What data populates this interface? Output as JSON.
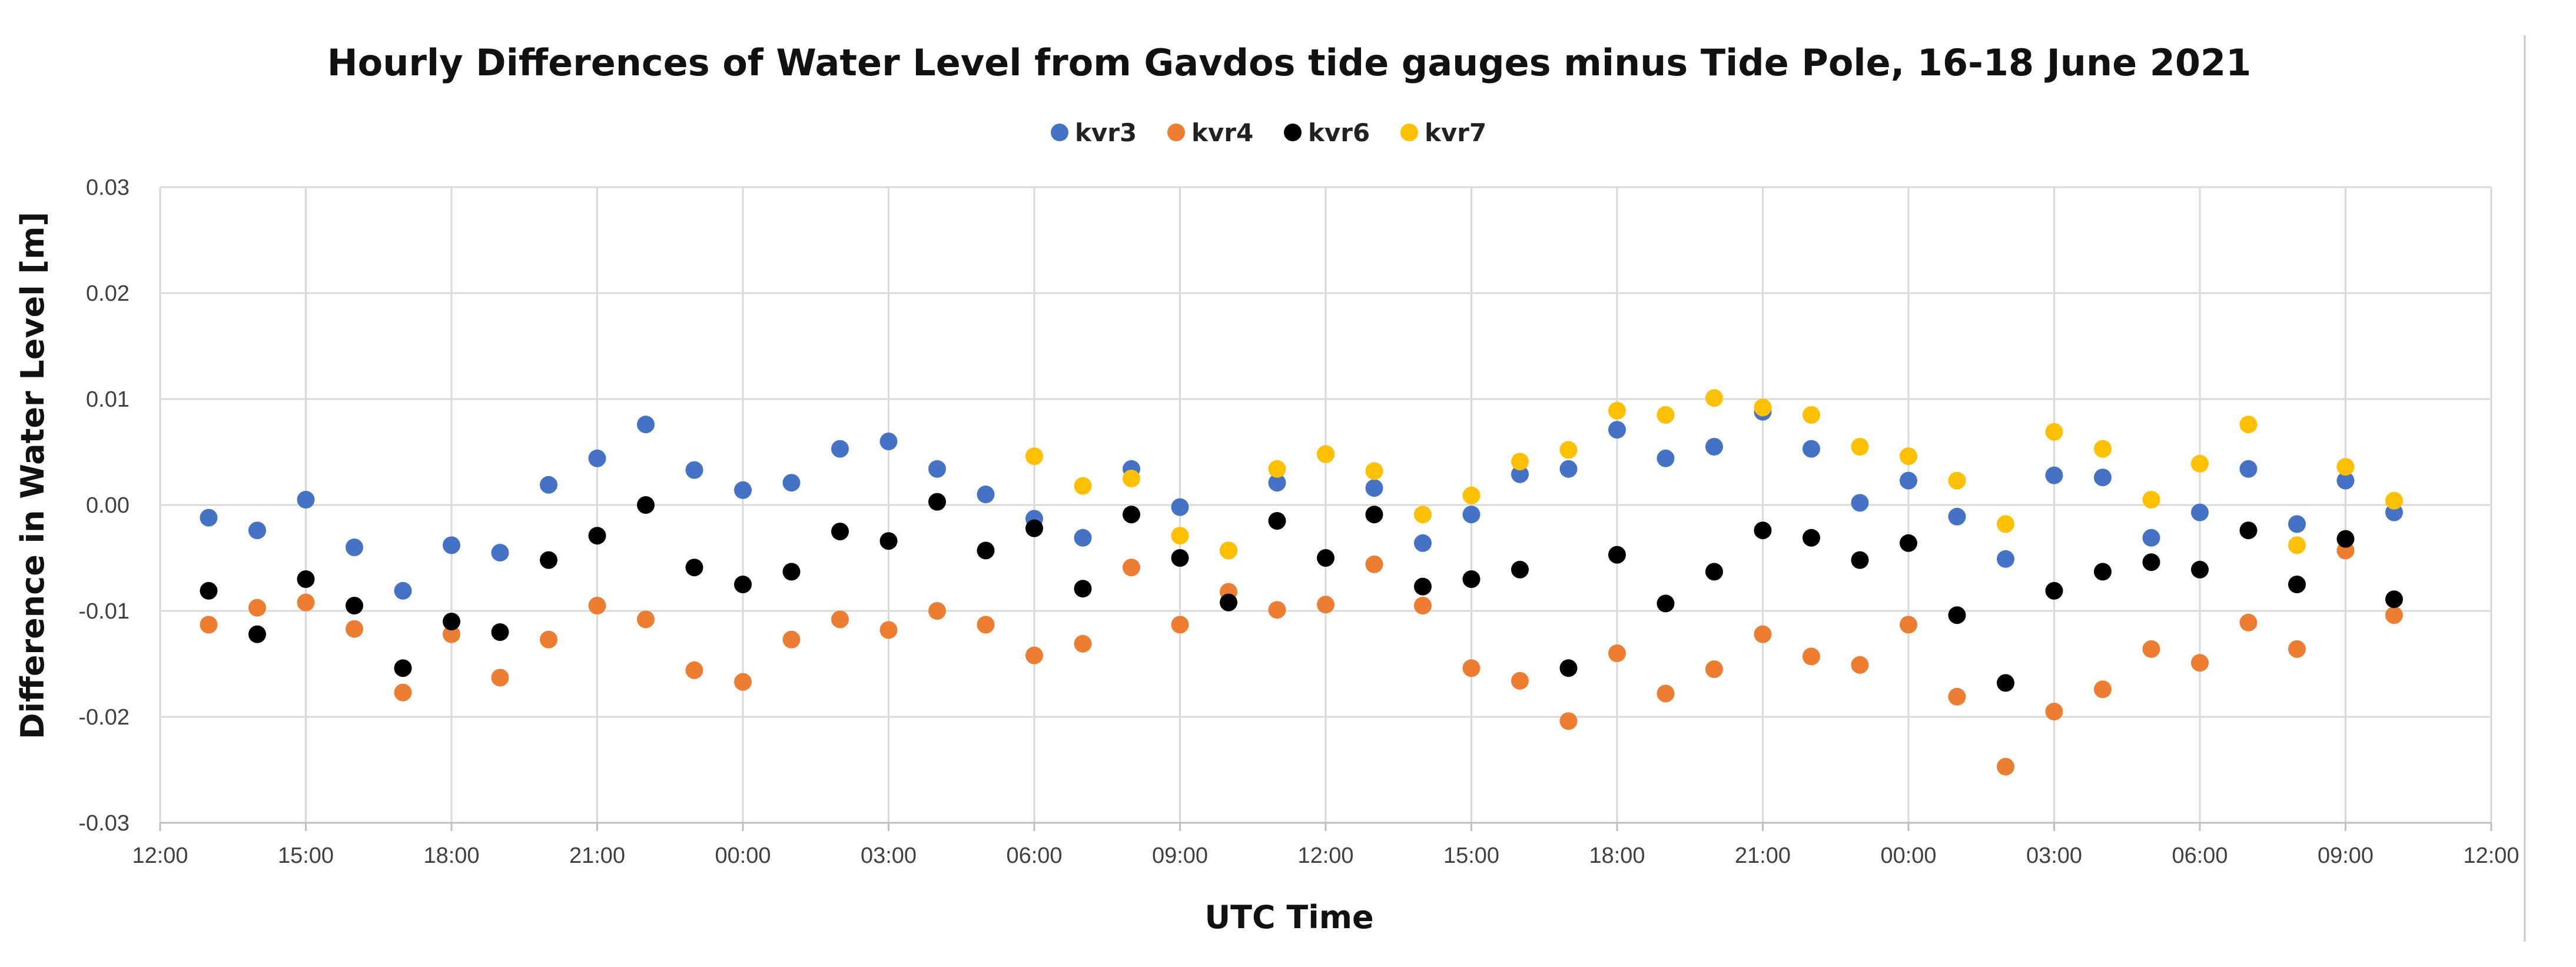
{
  "chart_data": {
    "type": "scatter",
    "title": "Hourly Differences of Water Level from Gavdos tide gauges minus Tide Pole, 16-18 June 2021",
    "xlabel": "UTC Time",
    "ylabel": "Difference in Water Level [m]",
    "xlim": [
      12,
      60
    ],
    "ylim": [
      -0.03,
      0.03
    ],
    "y_ticks": [
      0.03,
      0.02,
      0.01,
      0.0,
      -0.01,
      -0.02,
      -0.03
    ],
    "y_tick_labels": [
      "0.03",
      "0.02",
      "0.01",
      "0.00",
      "-0.01",
      "-0.02",
      "-0.03"
    ],
    "x_ticks": [
      12,
      15,
      18,
      21,
      24,
      27,
      30,
      33,
      36,
      39,
      42,
      45,
      48,
      51,
      54,
      57,
      60
    ],
    "x_tick_labels": [
      "12:00",
      "15:00",
      "18:00",
      "21:00",
      "00:00",
      "03:00",
      "06:00",
      "09:00",
      "12:00",
      "15:00",
      "18:00",
      "21:00",
      "00:00",
      "03:00",
      "06:00",
      "09:00",
      "12:00"
    ],
    "grid": true,
    "legend_position": "top-center",
    "series": [
      {
        "name": "kvr3",
        "color": "#4472C4",
        "x": [
          13,
          14,
          15,
          16,
          17,
          18,
          19,
          20,
          21,
          22,
          23,
          24,
          25,
          26,
          27,
          28,
          29,
          30,
          31,
          32,
          33,
          34,
          35,
          36,
          37,
          38,
          39,
          40,
          41,
          42,
          43,
          44,
          45,
          46,
          47,
          48,
          49,
          50,
          51,
          52,
          53,
          54,
          55,
          56,
          57,
          58
        ],
        "y": [
          -0.0012,
          -0.0024,
          0.0005,
          -0.004,
          -0.0081,
          -0.0038,
          -0.0045,
          0.0019,
          0.0044,
          0.0076,
          0.0033,
          0.0014,
          0.0021,
          0.0053,
          0.006,
          0.0034,
          0.001,
          -0.0013,
          -0.0031,
          0.0034,
          -0.0002,
          -0.0043,
          0.0021,
          0.0048,
          0.0016,
          -0.0036,
          -0.0009,
          0.0029,
          0.0034,
          0.0071,
          0.0044,
          0.0055,
          0.0088,
          0.0053,
          0.0002,
          0.0023,
          -0.0011,
          -0.0051,
          0.0028,
          0.0026,
          -0.0031,
          -0.0007,
          0.0034,
          -0.0018,
          0.0023,
          -0.0007
        ]
      },
      {
        "name": "kvr4",
        "color": "#ED7D31",
        "x": [
          13,
          14,
          15,
          16,
          17,
          18,
          19,
          20,
          21,
          22,
          23,
          24,
          25,
          26,
          27,
          28,
          29,
          30,
          31,
          32,
          33,
          34,
          35,
          36,
          37,
          38,
          39,
          40,
          41,
          42,
          43,
          44,
          45,
          46,
          47,
          48,
          49,
          50,
          51,
          52,
          53,
          54,
          55,
          56,
          57,
          58
        ],
        "y": [
          -0.0113,
          -0.0097,
          -0.0092,
          -0.0117,
          -0.0177,
          -0.0122,
          -0.0163,
          -0.0127,
          -0.0095,
          -0.0108,
          -0.0156,
          -0.0167,
          -0.0127,
          -0.0108,
          -0.0118,
          -0.01,
          -0.0113,
          -0.0142,
          -0.0131,
          -0.0059,
          -0.0113,
          -0.0082,
          -0.0099,
          -0.0094,
          -0.0056,
          -0.0095,
          -0.0154,
          -0.0166,
          -0.0204,
          -0.014,
          -0.0178,
          -0.0155,
          -0.0122,
          -0.0143,
          -0.0151,
          -0.0113,
          -0.0181,
          -0.0247,
          -0.0195,
          -0.0174,
          -0.0136,
          -0.0149,
          -0.0111,
          -0.0136,
          -0.0043,
          -0.0104
        ]
      },
      {
        "name": "kvr6",
        "color": "#000000",
        "x": [
          13,
          14,
          15,
          16,
          17,
          18,
          19,
          20,
          21,
          22,
          23,
          24,
          25,
          26,
          27,
          28,
          29,
          30,
          31,
          32,
          33,
          34,
          35,
          36,
          37,
          38,
          39,
          40,
          41,
          42,
          43,
          44,
          45,
          46,
          47,
          48,
          49,
          50,
          51,
          52,
          53,
          54,
          55,
          56,
          57,
          58
        ],
        "y": [
          -0.0081,
          -0.0122,
          -0.007,
          -0.0095,
          -0.0154,
          -0.011,
          -0.012,
          -0.0052,
          -0.0029,
          0.0,
          -0.0059,
          -0.0075,
          -0.0063,
          -0.0025,
          -0.0034,
          0.0003,
          -0.0043,
          -0.0022,
          -0.0079,
          -0.0009,
          -0.005,
          -0.0092,
          -0.0015,
          -0.005,
          -0.0009,
          -0.0077,
          -0.007,
          -0.0061,
          -0.0154,
          -0.0047,
          -0.0093,
          -0.0063,
          -0.0024,
          -0.0031,
          -0.0052,
          -0.0036,
          -0.0104,
          -0.0168,
          -0.0081,
          -0.0063,
          -0.0054,
          -0.0061,
          -0.0024,
          -0.0075,
          -0.0032,
          -0.0089
        ]
      },
      {
        "name": "kvr7",
        "color": "#FFC000",
        "x": [
          30,
          31,
          32,
          33,
          34,
          35,
          36,
          37,
          38,
          39,
          40,
          41,
          42,
          43,
          44,
          45,
          46,
          47,
          48,
          49,
          50,
          51,
          52,
          53,
          54,
          55,
          56,
          57,
          58
        ],
        "y": [
          0.0046,
          0.0018,
          0.0025,
          -0.0029,
          -0.0043,
          0.0034,
          0.0048,
          0.0032,
          -0.0009,
          0.0009,
          0.0041,
          0.0052,
          0.0089,
          0.0085,
          0.0101,
          0.0092,
          0.0085,
          0.0055,
          0.0046,
          0.0023,
          -0.0018,
          0.0069,
          0.0053,
          0.0005,
          0.0039,
          0.0076,
          -0.0038,
          0.0036,
          0.0004
        ]
      }
    ]
  }
}
